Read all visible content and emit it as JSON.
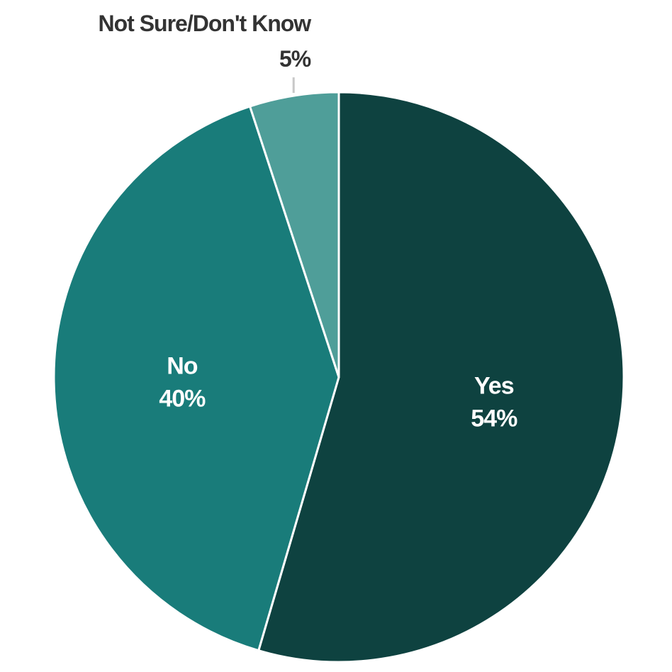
{
  "chart_data": {
    "type": "pie",
    "title": "",
    "slices": [
      {
        "label": "Yes",
        "value": 54,
        "value_label": "54%",
        "color": "#0e4240"
      },
      {
        "label": "No",
        "value": 40,
        "value_label": "40%",
        "color": "#197c7a"
      },
      {
        "label": "Not Sure/Don't Know",
        "value": 5,
        "value_label": "5%",
        "color": "#4f9e99"
      }
    ],
    "start_angle_deg": 0,
    "direction": "clockwise",
    "separator_color": "#ffffff",
    "leader_line_color": "#c8c8c8"
  }
}
